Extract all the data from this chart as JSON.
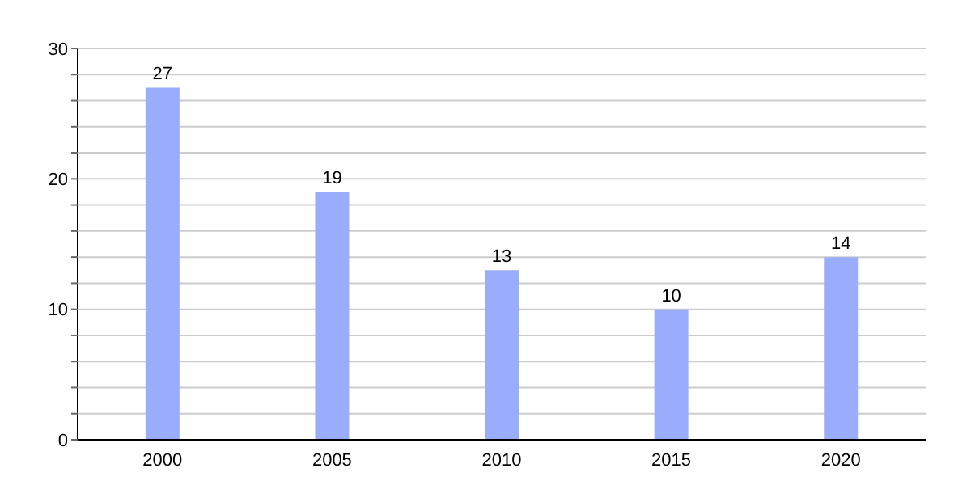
{
  "chart_data": {
    "type": "bar",
    "categories": [
      "2000",
      "2005",
      "2010",
      "2015",
      "2020"
    ],
    "values": [
      27,
      19,
      13,
      10,
      14
    ],
    "color": "#9aacfc",
    "ylim": [
      0,
      30
    ],
    "yticks": [
      0,
      {
        "value": 2,
        "label": null
      },
      {
        "value": 4,
        "label": null
      },
      {
        "value": 6,
        "label": null
      },
      {
        "value": 8,
        "label": null
      },
      10,
      {
        "value": 12,
        "label": null
      },
      {
        "value": 14,
        "label": null
      },
      {
        "value": 16,
        "label": null
      },
      {
        "value": 18,
        "label": null
      },
      20,
      {
        "value": 22,
        "label": null
      },
      {
        "value": 24,
        "label": null
      },
      {
        "value": 26,
        "label": null
      },
      {
        "value": 28,
        "label": null
      },
      30
    ],
    "grid": "y",
    "data_labels": true
  }
}
